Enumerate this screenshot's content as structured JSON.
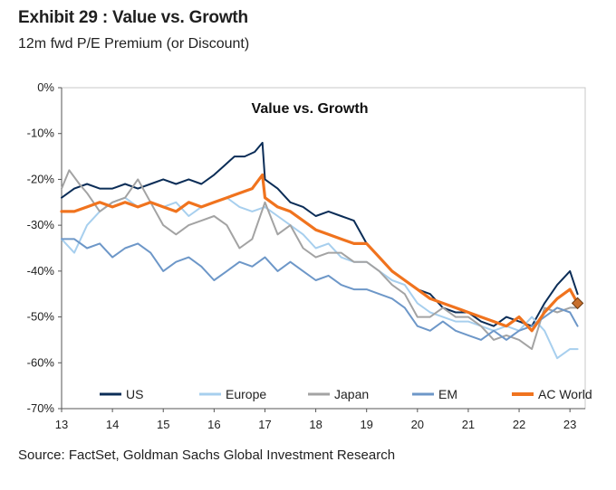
{
  "header": {
    "title": "Exhibit 29 : Value vs. Growth",
    "subtitle": "12m fwd P/E Premium (or Discount)"
  },
  "footer": {
    "source": "Source: FactSet, Goldman Sachs Global Investment Research"
  },
  "chart_data": {
    "type": "line",
    "title": "Value vs. Growth",
    "xlabel": "",
    "ylabel": "",
    "xlim": [
      13,
      23.3
    ],
    "ylim": [
      -70,
      0
    ],
    "x_ticks": [
      13,
      14,
      15,
      16,
      17,
      18,
      19,
      20,
      21,
      22,
      23
    ],
    "x_tick_labels": [
      "13",
      "14",
      "15",
      "16",
      "17",
      "18",
      "19",
      "20",
      "21",
      "22",
      "23"
    ],
    "y_ticks": [
      0,
      -10,
      -20,
      -30,
      -40,
      -50,
      -60,
      -70
    ],
    "y_tick_labels": [
      "0%",
      "-10%",
      "-20%",
      "-30%",
      "-40%",
      "-50%",
      "-60%",
      "-70%"
    ],
    "grid": false,
    "legend_position": "bottom",
    "series": [
      {
        "name": "US",
        "color": "#0b2d57",
        "x": [
          13.0,
          13.25,
          13.5,
          13.75,
          14.0,
          14.25,
          14.5,
          14.75,
          15.0,
          15.25,
          15.5,
          15.75,
          16.0,
          16.2,
          16.4,
          16.6,
          16.8,
          16.95,
          17.0,
          17.25,
          17.5,
          17.75,
          18.0,
          18.25,
          18.5,
          18.75,
          19.0,
          19.25,
          19.5,
          19.75,
          20.0,
          20.25,
          20.5,
          20.75,
          21.0,
          21.25,
          21.5,
          21.75,
          22.0,
          22.25,
          22.5,
          22.75,
          23.0,
          23.15
        ],
        "y": [
          -24,
          -22,
          -21,
          -22,
          -22,
          -21,
          -22,
          -21,
          -20,
          -21,
          -20,
          -21,
          -19,
          -17,
          -15,
          -15,
          -14,
          -12,
          -20,
          -22,
          -25,
          -26,
          -28,
          -27,
          -28,
          -29,
          -34,
          -37,
          -40,
          -42,
          -44,
          -45,
          -48,
          -49,
          -49,
          -51,
          -52,
          -50,
          -51,
          -52,
          -47,
          -43,
          -40,
          -45
        ]
      },
      {
        "name": "Europe",
        "color": "#a7cfee",
        "x": [
          13.0,
          13.25,
          13.5,
          13.75,
          14.0,
          14.25,
          14.5,
          14.75,
          15.0,
          15.25,
          15.5,
          15.75,
          16.0,
          16.25,
          16.5,
          16.75,
          17.0,
          17.25,
          17.5,
          17.75,
          18.0,
          18.25,
          18.5,
          18.75,
          19.0,
          19.25,
          19.5,
          19.75,
          20.0,
          20.25,
          20.5,
          20.75,
          21.0,
          21.25,
          21.5,
          21.75,
          22.0,
          22.25,
          22.5,
          22.75,
          23.0,
          23.15
        ],
        "y": [
          -33,
          -36,
          -30,
          -27,
          -25,
          -24,
          -26,
          -25,
          -26,
          -25,
          -28,
          -26,
          -25,
          -24,
          -26,
          -27,
          -26,
          -28,
          -30,
          -32,
          -35,
          -34,
          -37,
          -38,
          -38,
          -40,
          -42,
          -43,
          -47,
          -49,
          -50,
          -51,
          -51,
          -52,
          -53,
          -52,
          -53,
          -50,
          -53,
          -59,
          -57,
          -57
        ]
      },
      {
        "name": "Japan",
        "color": "#a3a3a3",
        "x": [
          13.0,
          13.15,
          13.35,
          13.5,
          13.75,
          14.0,
          14.25,
          14.5,
          14.75,
          15.0,
          15.25,
          15.5,
          15.75,
          16.0,
          16.25,
          16.5,
          16.75,
          17.0,
          17.25,
          17.5,
          17.75,
          18.0,
          18.25,
          18.5,
          18.75,
          19.0,
          19.25,
          19.5,
          19.75,
          20.0,
          20.25,
          20.5,
          20.75,
          21.0,
          21.25,
          21.5,
          21.75,
          22.0,
          22.25,
          22.5,
          22.75,
          23.0,
          23.15
        ],
        "y": [
          -22,
          -18,
          -21,
          -23,
          -27,
          -25,
          -24,
          -20,
          -25,
          -30,
          -32,
          -30,
          -29,
          -28,
          -30,
          -35,
          -33,
          -25,
          -32,
          -30,
          -35,
          -37,
          -36,
          -36,
          -38,
          -38,
          -40,
          -43,
          -45,
          -50,
          -50,
          -48,
          -50,
          -50,
          -52,
          -55,
          -54,
          -55,
          -57,
          -48,
          -49,
          -48,
          -48
        ]
      },
      {
        "name": "EM",
        "color": "#6d97c8",
        "x": [
          13.0,
          13.25,
          13.5,
          13.75,
          14.0,
          14.25,
          14.5,
          14.75,
          15.0,
          15.25,
          15.5,
          15.75,
          16.0,
          16.25,
          16.5,
          16.75,
          17.0,
          17.25,
          17.5,
          17.75,
          18.0,
          18.25,
          18.5,
          18.75,
          19.0,
          19.25,
          19.5,
          19.75,
          20.0,
          20.25,
          20.5,
          20.75,
          21.0,
          21.25,
          21.5,
          21.75,
          22.0,
          22.25,
          22.5,
          22.75,
          23.0,
          23.15
        ],
        "y": [
          -33,
          -33,
          -35,
          -34,
          -37,
          -35,
          -34,
          -36,
          -40,
          -38,
          -37,
          -39,
          -42,
          -40,
          -38,
          -39,
          -37,
          -40,
          -38,
          -40,
          -42,
          -41,
          -43,
          -44,
          -44,
          -45,
          -46,
          -48,
          -52,
          -53,
          -51,
          -53,
          -54,
          -55,
          -53,
          -55,
          -53,
          -52,
          -50,
          -48,
          -49,
          -52
        ]
      },
      {
        "name": "AC World",
        "color": "#f0731e",
        "x": [
          13.0,
          13.25,
          13.5,
          13.75,
          14.0,
          14.25,
          14.5,
          14.75,
          15.0,
          15.25,
          15.5,
          15.75,
          16.0,
          16.25,
          16.5,
          16.75,
          16.95,
          17.0,
          17.25,
          17.5,
          17.75,
          18.0,
          18.25,
          18.5,
          18.75,
          19.0,
          19.25,
          19.5,
          19.75,
          20.0,
          20.25,
          20.5,
          20.75,
          21.0,
          21.25,
          21.5,
          21.75,
          22.0,
          22.25,
          22.5,
          22.75,
          23.0,
          23.15
        ],
        "y": [
          -27,
          -27,
          -26,
          -25,
          -26,
          -25,
          -26,
          -25,
          -26,
          -27,
          -25,
          -26,
          -25,
          -24,
          -23,
          -22,
          -19,
          -24,
          -26,
          -27,
          -29,
          -31,
          -32,
          -33,
          -34,
          -34,
          -37,
          -40,
          -42,
          -44,
          -46,
          -47,
          -48,
          -49,
          -50,
          -51,
          -52,
          -50,
          -53,
          -49,
          -46,
          -44,
          -47
        ]
      }
    ],
    "end_marker": {
      "series": "AC World",
      "x": 23.15,
      "y": -47,
      "color": "#c8702e"
    }
  }
}
